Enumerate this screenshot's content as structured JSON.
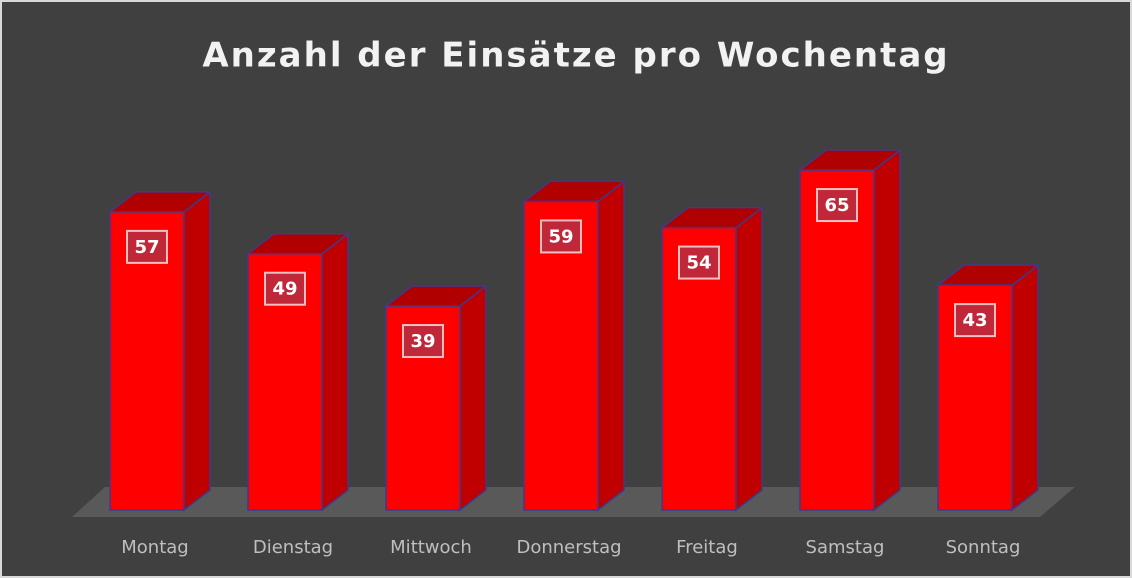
{
  "chart_data": {
    "type": "bar3d",
    "title": "Anzahl der Einsätze pro Wochentag",
    "categories": [
      "Montag",
      "Dienstag",
      "Mittwoch",
      "Donnerstag",
      "Freitag",
      "Samstag",
      "Sonntag"
    ],
    "values": [
      57,
      49,
      39,
      59,
      54,
      65,
      43
    ],
    "color": "#ff0000"
  }
}
